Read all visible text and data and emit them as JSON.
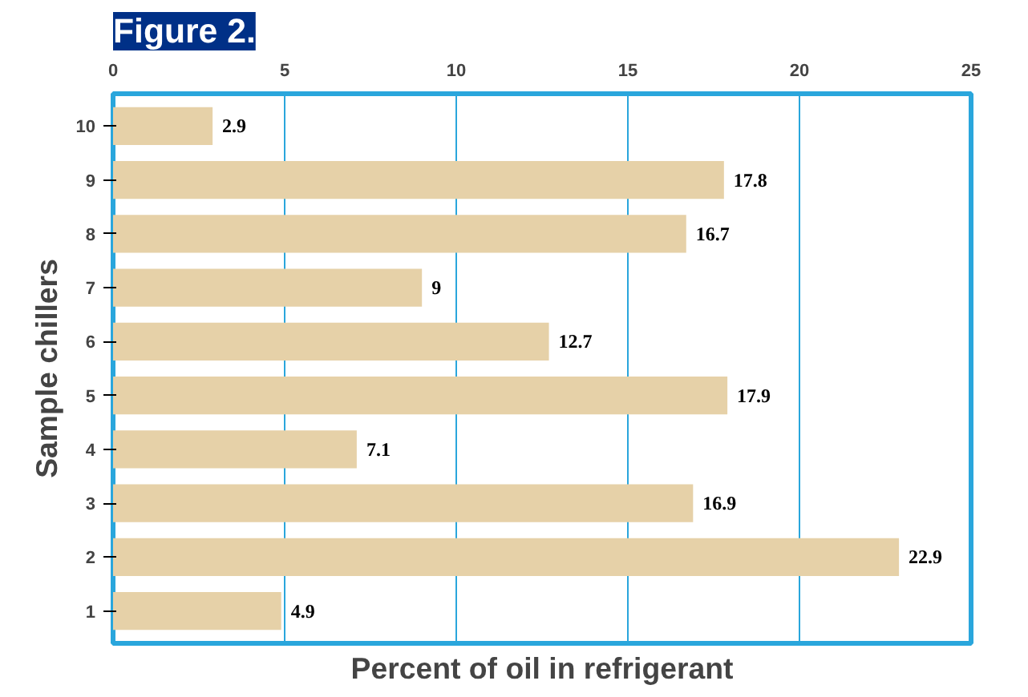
{
  "chart_data": {
    "type": "bar",
    "orientation": "horizontal",
    "title": "Figure 2.",
    "xlabel": "Percent of oil in refrigerant",
    "ylabel": "Sample chillers",
    "categories": [
      "10",
      "9",
      "8",
      "7",
      "6",
      "5",
      "4",
      "3",
      "2",
      "1"
    ],
    "values": [
      2.9,
      17.8,
      16.7,
      9,
      12.7,
      17.9,
      7.1,
      16.9,
      22.9,
      4.9
    ],
    "color": "#e6d1a8",
    "data_labels": true,
    "xlim": [
      0,
      25
    ],
    "xticks": [
      0,
      5,
      10,
      15,
      20,
      25
    ],
    "grid": "x"
  }
}
